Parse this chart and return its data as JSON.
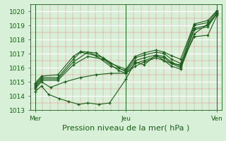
{
  "title": "Pression niveau de la mer( hPa )",
  "bg_color": "#d8f0d8",
  "plot_bg_color": "#d8f0d8",
  "line_color": "#1a5c1a",
  "text_color": "#1a5c1a",
  "ylim": [
    1013.0,
    1020.5
  ],
  "yticks": [
    1013,
    1014,
    1015,
    1016,
    1017,
    1018,
    1019,
    1020
  ],
  "day_labels": [
    "Mer",
    "Jeu",
    "Ven"
  ],
  "day_positions": [
    0.0,
    1.0,
    2.0
  ],
  "xlim": [
    -0.05,
    2.05
  ],
  "xlabel_fontsize": 8,
  "tick_fontsize": 6.5,
  "lines": [
    {
      "x": [
        0.0,
        0.07,
        0.15,
        0.27,
        0.37,
        0.48,
        0.58,
        0.7,
        0.82,
        1.0,
        1.1,
        1.2,
        1.33,
        1.42,
        1.5,
        1.6,
        1.75,
        1.9,
        2.0
      ],
      "y": [
        1014.3,
        1014.7,
        1014.1,
        1013.8,
        1013.6,
        1013.4,
        1013.5,
        1013.4,
        1013.5,
        1015.2,
        1016.4,
        1016.2,
        1016.9,
        1016.5,
        1016.1,
        1015.9,
        1018.4,
        1019.1,
        1019.8
      ]
    },
    {
      "x": [
        0.0,
        0.07,
        0.17,
        0.33,
        0.5,
        0.67,
        0.83,
        1.0,
        1.1,
        1.2,
        1.33,
        1.42,
        1.5,
        1.6,
        1.75,
        1.9,
        2.0
      ],
      "y": [
        1014.5,
        1015.0,
        1014.6,
        1015.0,
        1015.3,
        1015.5,
        1015.6,
        1015.6,
        1016.1,
        1016.4,
        1016.7,
        1016.5,
        1016.3,
        1016.2,
        1018.2,
        1018.3,
        1019.7
      ]
    },
    {
      "x": [
        0.0,
        0.07,
        0.25,
        0.42,
        0.58,
        0.75,
        0.92,
        1.0,
        1.1,
        1.2,
        1.33,
        1.42,
        1.5,
        1.6,
        1.75,
        1.9,
        2.0
      ],
      "y": [
        1014.6,
        1015.1,
        1015.1,
        1016.2,
        1016.8,
        1016.6,
        1015.8,
        1015.6,
        1016.3,
        1016.5,
        1016.8,
        1016.7,
        1016.3,
        1016.0,
        1018.7,
        1018.9,
        1019.85
      ]
    },
    {
      "x": [
        0.0,
        0.07,
        0.25,
        0.42,
        0.58,
        0.75,
        0.92,
        1.0,
        1.1,
        1.2,
        1.33,
        1.42,
        1.5,
        1.6,
        1.75,
        1.9,
        2.0
      ],
      "y": [
        1014.7,
        1015.2,
        1015.2,
        1016.4,
        1017.1,
        1016.7,
        1016.0,
        1015.7,
        1016.5,
        1016.7,
        1016.9,
        1016.8,
        1016.4,
        1016.1,
        1018.8,
        1019.0,
        1019.9
      ]
    },
    {
      "x": [
        0.0,
        0.07,
        0.25,
        0.42,
        0.5,
        0.67,
        0.83,
        1.0,
        1.1,
        1.2,
        1.33,
        1.42,
        1.5,
        1.6,
        1.75,
        1.9,
        2.0
      ],
      "y": [
        1014.8,
        1015.3,
        1015.3,
        1016.6,
        1017.1,
        1016.85,
        1016.1,
        1015.8,
        1016.7,
        1016.9,
        1017.1,
        1017.0,
        1016.6,
        1016.3,
        1019.0,
        1019.2,
        1020.0
      ]
    },
    {
      "x": [
        0.0,
        0.07,
        0.25,
        0.42,
        0.5,
        0.67,
        0.83,
        1.0,
        1.1,
        1.2,
        1.33,
        1.42,
        1.5,
        1.6,
        1.75,
        1.9,
        2.0
      ],
      "y": [
        1014.9,
        1015.4,
        1015.5,
        1016.8,
        1017.15,
        1017.05,
        1016.3,
        1015.9,
        1016.8,
        1017.05,
        1017.25,
        1017.1,
        1016.85,
        1016.6,
        1019.1,
        1019.35,
        1020.05
      ]
    }
  ]
}
